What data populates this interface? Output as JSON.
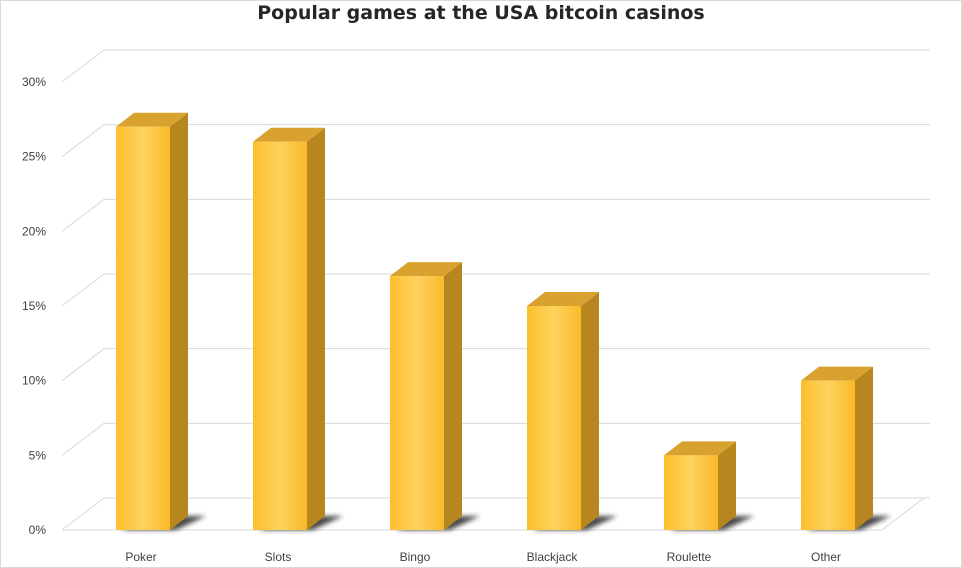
{
  "chart_data": {
    "type": "bar",
    "title": "Popular games at the USA bitcoin casinos",
    "categories": [
      "Poker",
      "Slots",
      "Bingo",
      "Blackjack",
      "Roulette",
      "Other"
    ],
    "values": [
      27,
      26,
      17,
      15,
      5,
      10
    ],
    "y_ticks": [
      "0%",
      "5%",
      "10%",
      "15%",
      "20%",
      "25%",
      "30%"
    ],
    "ylim": [
      0,
      30
    ],
    "unit": "%",
    "grid": true,
    "legend": "none",
    "style": "3d-column",
    "colors": {
      "bar_front": "#fdc231",
      "bar_front_light": "#fed064",
      "bar_side": "#b8861f",
      "bar_top": "#d9a22f",
      "gridline": "#d9d9d9",
      "shadow": "#2b2b2b"
    }
  }
}
